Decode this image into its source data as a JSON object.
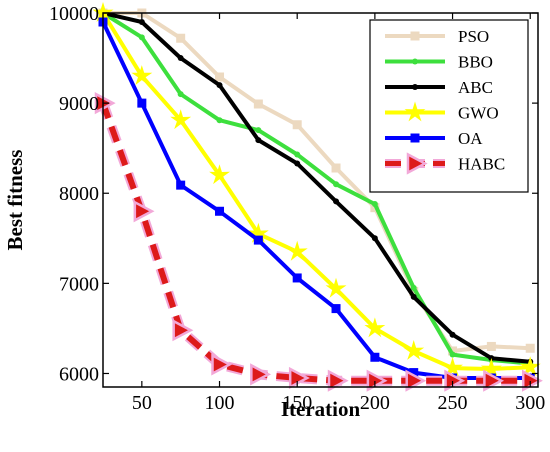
{
  "chart_data": {
    "type": "line",
    "title": "",
    "xlabel": "Iteration",
    "ylabel": "Best fitness",
    "xlim": [
      25,
      305
    ],
    "ylim": [
      5850,
      10000
    ],
    "xticks": [
      50,
      100,
      150,
      200,
      250,
      300
    ],
    "yticks": [
      6000,
      7000,
      8000,
      9000,
      10000
    ],
    "grid": false,
    "legend_position": "top-right",
    "x": [
      25,
      50,
      75,
      100,
      125,
      150,
      175,
      200,
      225,
      250,
      275,
      300
    ],
    "series": [
      {
        "name": "PSO",
        "color": "#ecd9c0",
        "marker": "square",
        "dashed": false,
        "values": [
          10000,
          10000,
          9720,
          9290,
          8990,
          8760,
          8280,
          7840,
          6910,
          6250,
          6300,
          6280
        ]
      },
      {
        "name": "BBO",
        "color": "#3ddf3d",
        "marker": "dot",
        "dashed": false,
        "values": [
          10000,
          9730,
          9100,
          8810,
          8700,
          8430,
          8100,
          7880,
          6950,
          6210,
          6150,
          6110
        ]
      },
      {
        "name": "ABC",
        "color": "#000000",
        "marker": "dot",
        "dashed": false,
        "values": [
          10000,
          9900,
          9500,
          9200,
          8590,
          8330,
          7910,
          7500,
          6850,
          6430,
          6170,
          6130
        ]
      },
      {
        "name": "GWO",
        "color": "#ffff00",
        "marker": "star",
        "dashed": false,
        "values": [
          10000,
          9300,
          8810,
          8200,
          7550,
          7350,
          6940,
          6500,
          6250,
          6060,
          6050,
          6070
        ]
      },
      {
        "name": "OA",
        "color": "#0000ff",
        "marker": "square",
        "dashed": false,
        "values": [
          9900,
          9000,
          8090,
          7800,
          7480,
          7060,
          6720,
          6180,
          6010,
          5950,
          5950,
          5950
        ]
      },
      {
        "name": "HABC",
        "color": "#dd1a1a",
        "marker": "triangle-right",
        "dashed": true,
        "values": [
          9000,
          7800,
          6480,
          6100,
          5990,
          5950,
          5920,
          5920,
          5920,
          5920,
          5920,
          5920
        ]
      }
    ]
  }
}
